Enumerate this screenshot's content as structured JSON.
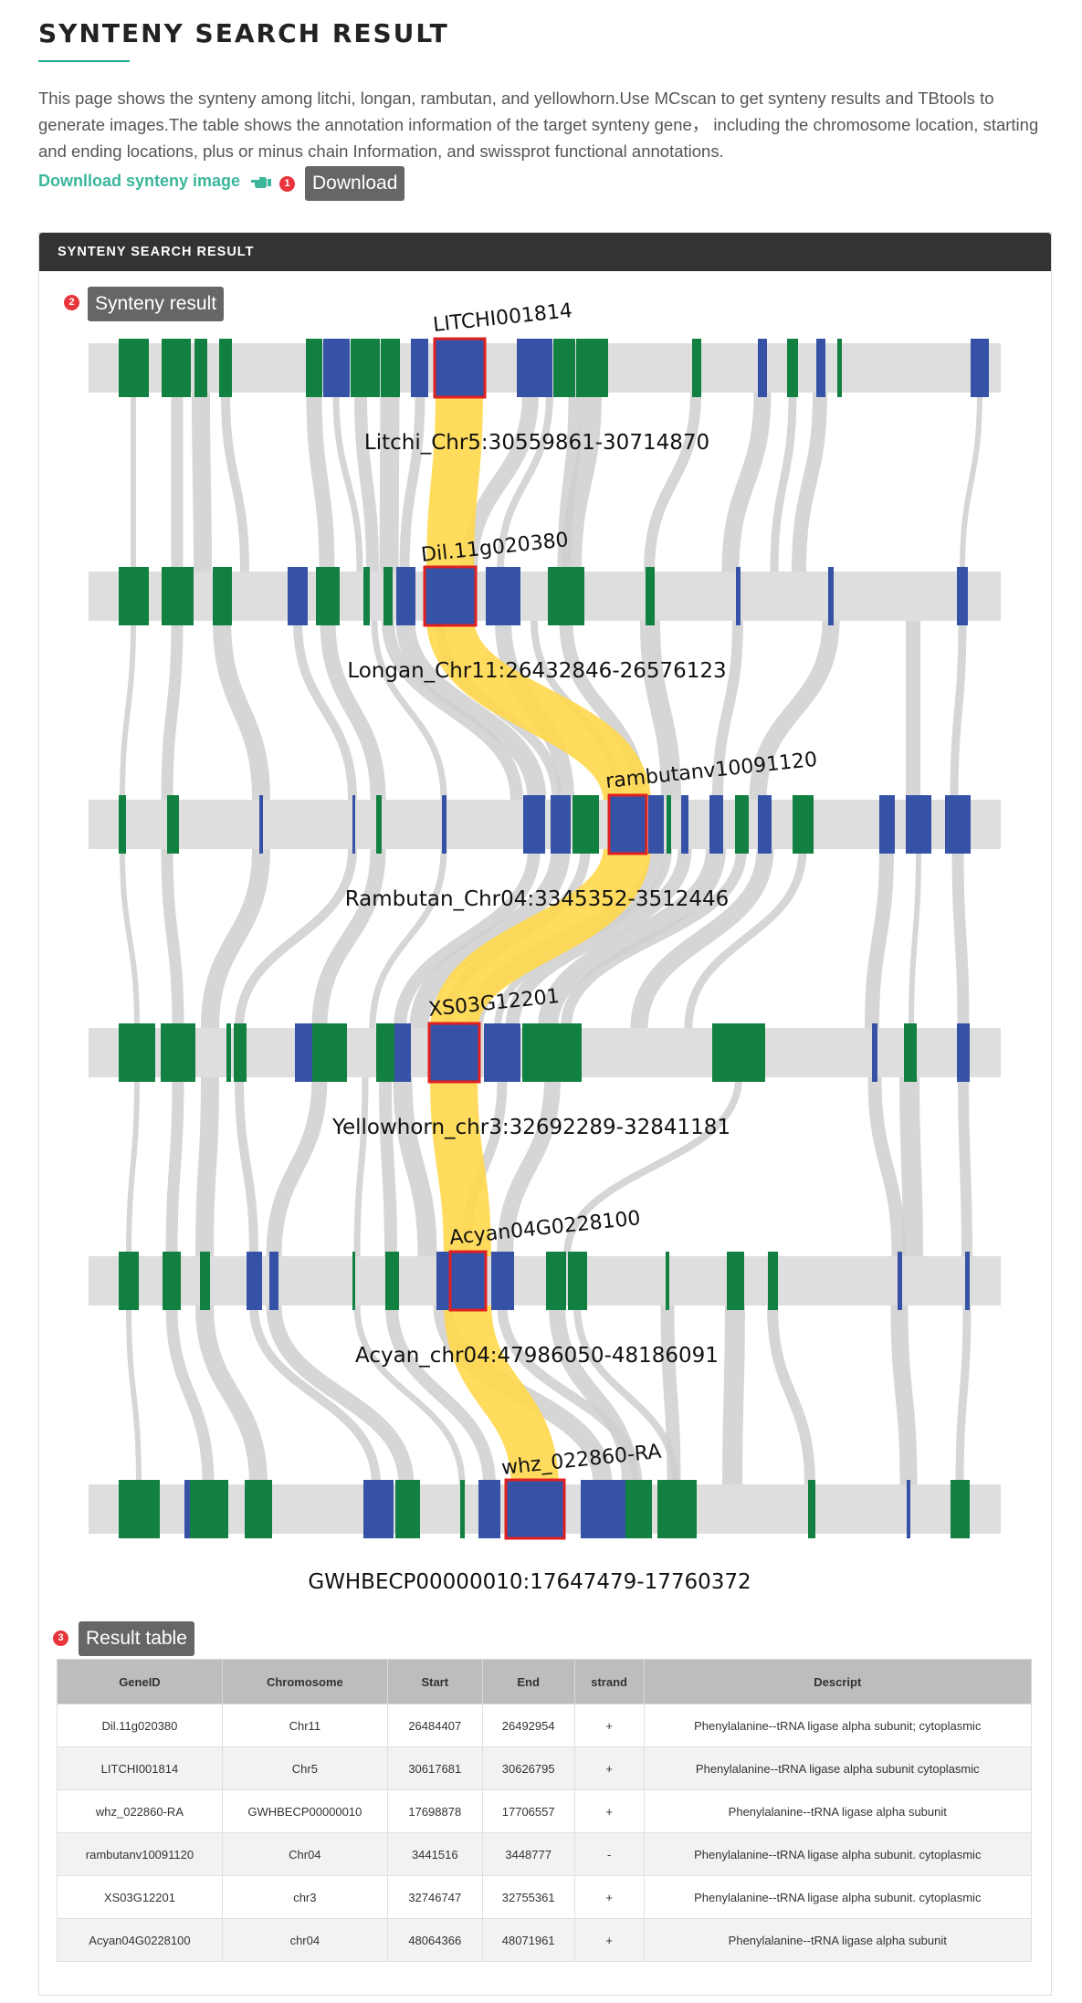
{
  "page": {
    "title": "SYNTENY SEARCH RESULT",
    "intro": "This page shows the synteny among litchi, longan, rambutan, and yellowhorn.Use MCscan to get synteny results and TBtools to generate images.The table shows the annotation information of the target synteny gene， including the chromosome location, starting and ending locations, plus or minus chain Information, and swissprot functional annotations.",
    "download_link": "Downlload synteny image",
    "download_tag": "Download",
    "badges": [
      "1",
      "2",
      "3"
    ]
  },
  "panel": {
    "header": "SYNTENY SEARCH RESULT",
    "synteny_tag": "Synteny result",
    "table_tag": "Result table"
  },
  "synteny": {
    "colors": {
      "track": "#dedede",
      "blue": "#3652a6",
      "green": "#118040",
      "highlight_link": "#ffd84d",
      "link": "#cfcfcf",
      "target_border": "#e02020"
    },
    "tracks": [
      {
        "region": "Litchi_Chr5:30559861-30714870",
        "gene": "LITCHI001814"
      },
      {
        "region": "Longan_Chr11:26432846-26576123",
        "gene": "Dil.11g020380"
      },
      {
        "region": "Rambutan_Chr04:3345352-3512446",
        "gene": "rambutanv10091120"
      },
      {
        "region": "Yellowhorn_chr3:32692289-32841181",
        "gene": "XS03G12201"
      },
      {
        "region": "Acyan_chr04:47986050-48186091",
        "gene": "Acyan04G0228100"
      },
      {
        "region": "GWHBECP00000010:17647479-17760372",
        "gene": "whz_022860-RA"
      }
    ]
  },
  "table": {
    "headers": [
      "GeneID",
      "Chromosome",
      "Start",
      "End",
      "strand",
      "Descript"
    ],
    "rows": [
      [
        "Dil.11g020380",
        "Chr11",
        "26484407",
        "26492954",
        "+",
        "Phenylalanine--tRNA ligase alpha subunit; cytoplasmic"
      ],
      [
        "LITCHI001814",
        "Chr5",
        "30617681",
        "30626795",
        "+",
        "Phenylalanine--tRNA ligase alpha subunit cytoplasmic"
      ],
      [
        "whz_022860-RA",
        "GWHBECP00000010",
        "17698878",
        "17706557",
        "+",
        "Phenylalanine--tRNA ligase alpha subunit"
      ],
      [
        "rambutanv10091120",
        "Chr04",
        "3441516",
        "3448777",
        "-",
        "Phenylalanine--tRNA ligase alpha subunit. cytoplasmic"
      ],
      [
        "XS03G12201",
        "chr3",
        "32746747",
        "32755361",
        "+",
        "Phenylalanine--tRNA ligase alpha subunit. cytoplasmic"
      ],
      [
        "Acyan04G0228100",
        "chr04",
        "48064366",
        "48071961",
        "+",
        "Phenylalanine--tRNA ligase alpha subunit"
      ]
    ]
  }
}
